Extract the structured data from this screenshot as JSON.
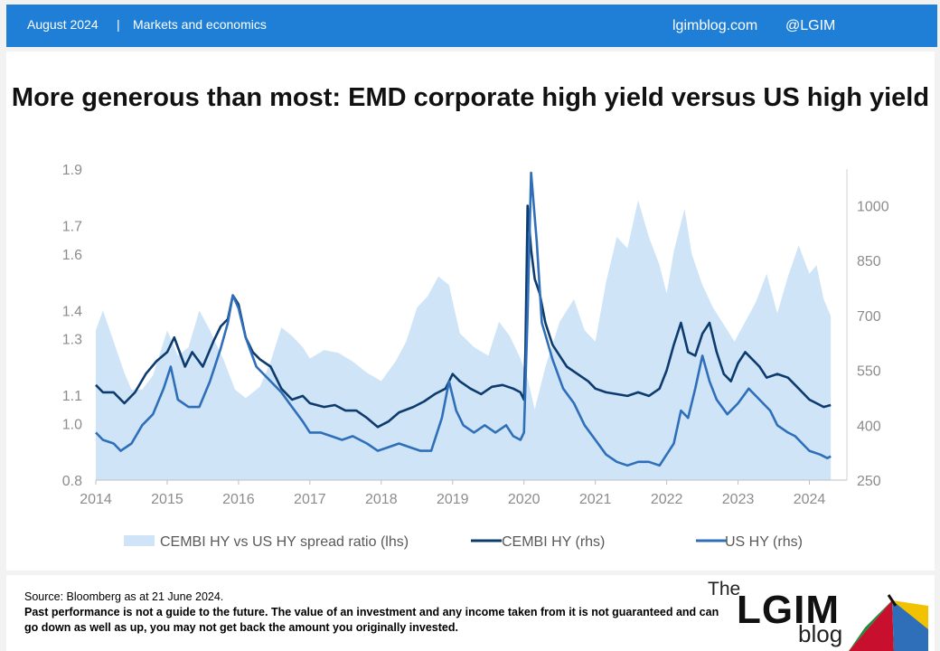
{
  "header": {
    "date": "August 2024",
    "separator": "|",
    "section": "Markets and economics",
    "site": "lgimblog.com",
    "handle": "@LGIM",
    "background": "#1f7fd6"
  },
  "chart_data": {
    "type": "line",
    "title": "More generous than most: EMD corporate high yield versus US high yield",
    "x_ticks": [
      "2014",
      "2015",
      "2016",
      "2017",
      "2018",
      "2019",
      "2020",
      "2021",
      "2022",
      "2023",
      "2024"
    ],
    "xlim": [
      2014.0,
      2024.5
    ],
    "left_axis": {
      "ticks": [
        "1.9",
        "1.7",
        "1.6",
        "1.4",
        "1.3",
        "1.1",
        "1.0",
        "0.8"
      ],
      "ylim": [
        0.8,
        1.9
      ]
    },
    "right_axis": {
      "ticks": [
        "1000",
        "850",
        "700",
        "550",
        "400",
        "250"
      ],
      "ylim": [
        250,
        1100
      ]
    },
    "legend_position": "bottom",
    "series": [
      {
        "name": "CEMBI HY vs US HY spread ratio (lhs)",
        "kind": "area",
        "axis": "left",
        "color": "#cfe5f7",
        "points": [
          [
            2014.0,
            1.33
          ],
          [
            2014.1,
            1.4
          ],
          [
            2014.25,
            1.29
          ],
          [
            2014.4,
            1.18
          ],
          [
            2014.5,
            1.12
          ],
          [
            2014.65,
            1.12
          ],
          [
            2014.8,
            1.17
          ],
          [
            2015.0,
            1.33
          ],
          [
            2015.15,
            1.24
          ],
          [
            2015.3,
            1.27
          ],
          [
            2015.45,
            1.4
          ],
          [
            2015.6,
            1.33
          ],
          [
            2015.8,
            1.22
          ],
          [
            2015.95,
            1.12
          ],
          [
            2016.1,
            1.09
          ],
          [
            2016.3,
            1.13
          ],
          [
            2016.45,
            1.22
          ],
          [
            2016.6,
            1.34
          ],
          [
            2016.75,
            1.31
          ],
          [
            2016.9,
            1.27
          ],
          [
            2017.0,
            1.23
          ],
          [
            2017.2,
            1.26
          ],
          [
            2017.4,
            1.25
          ],
          [
            2017.6,
            1.22
          ],
          [
            2017.8,
            1.18
          ],
          [
            2018.0,
            1.15
          ],
          [
            2018.2,
            1.22
          ],
          [
            2018.35,
            1.29
          ],
          [
            2018.5,
            1.41
          ],
          [
            2018.65,
            1.45
          ],
          [
            2018.8,
            1.52
          ],
          [
            2018.95,
            1.49
          ],
          [
            2019.1,
            1.32
          ],
          [
            2019.3,
            1.27
          ],
          [
            2019.5,
            1.24
          ],
          [
            2019.65,
            1.36
          ],
          [
            2019.8,
            1.31
          ],
          [
            2019.95,
            1.23
          ],
          [
            2020.05,
            1.16
          ],
          [
            2020.15,
            1.05
          ],
          [
            2020.3,
            1.2
          ],
          [
            2020.5,
            1.36
          ],
          [
            2020.7,
            1.44
          ],
          [
            2020.85,
            1.33
          ],
          [
            2021.0,
            1.29
          ],
          [
            2021.15,
            1.5
          ],
          [
            2021.3,
            1.66
          ],
          [
            2021.45,
            1.62
          ],
          [
            2021.6,
            1.79
          ],
          [
            2021.75,
            1.66
          ],
          [
            2021.9,
            1.56
          ],
          [
            2022.0,
            1.46
          ],
          [
            2022.1,
            1.61
          ],
          [
            2022.25,
            1.76
          ],
          [
            2022.35,
            1.6
          ],
          [
            2022.5,
            1.49
          ],
          [
            2022.65,
            1.41
          ],
          [
            2022.8,
            1.35
          ],
          [
            2022.95,
            1.29
          ],
          [
            2023.1,
            1.36
          ],
          [
            2023.25,
            1.43
          ],
          [
            2023.4,
            1.53
          ],
          [
            2023.55,
            1.39
          ],
          [
            2023.7,
            1.52
          ],
          [
            2023.85,
            1.63
          ],
          [
            2024.0,
            1.53
          ],
          [
            2024.1,
            1.56
          ],
          [
            2024.2,
            1.44
          ],
          [
            2024.3,
            1.38
          ]
        ]
      },
      {
        "name": "CEMBI HY (rhs)",
        "kind": "line",
        "axis": "right",
        "color": "#0d3b6e",
        "points": [
          [
            2014.0,
            510
          ],
          [
            2014.1,
            490
          ],
          [
            2014.25,
            490
          ],
          [
            2014.4,
            460
          ],
          [
            2014.55,
            490
          ],
          [
            2014.7,
            540
          ],
          [
            2014.85,
            575
          ],
          [
            2015.0,
            600
          ],
          [
            2015.1,
            640
          ],
          [
            2015.25,
            560
          ],
          [
            2015.35,
            600
          ],
          [
            2015.5,
            560
          ],
          [
            2015.65,
            630
          ],
          [
            2015.75,
            670
          ],
          [
            2015.85,
            690
          ],
          [
            2015.92,
            755
          ],
          [
            2016.0,
            730
          ],
          [
            2016.1,
            640
          ],
          [
            2016.2,
            600
          ],
          [
            2016.3,
            580
          ],
          [
            2016.45,
            560
          ],
          [
            2016.6,
            500
          ],
          [
            2016.75,
            470
          ],
          [
            2016.9,
            480
          ],
          [
            2017.0,
            460
          ],
          [
            2017.2,
            450
          ],
          [
            2017.35,
            455
          ],
          [
            2017.5,
            440
          ],
          [
            2017.65,
            440
          ],
          [
            2017.8,
            420
          ],
          [
            2017.95,
            395
          ],
          [
            2018.1,
            410
          ],
          [
            2018.25,
            435
          ],
          [
            2018.45,
            450
          ],
          [
            2018.6,
            465
          ],
          [
            2018.75,
            485
          ],
          [
            2018.9,
            500
          ],
          [
            2019.0,
            540
          ],
          [
            2019.1,
            520
          ],
          [
            2019.25,
            500
          ],
          [
            2019.4,
            485
          ],
          [
            2019.55,
            505
          ],
          [
            2019.7,
            510
          ],
          [
            2019.85,
            500
          ],
          [
            2019.95,
            490
          ],
          [
            2020.0,
            470
          ],
          [
            2020.02,
            600
          ],
          [
            2020.05,
            1000
          ],
          [
            2020.1,
            880
          ],
          [
            2020.15,
            800
          ],
          [
            2020.22,
            760
          ],
          [
            2020.3,
            680
          ],
          [
            2020.4,
            620
          ],
          [
            2020.5,
            590
          ],
          [
            2020.6,
            560
          ],
          [
            2020.75,
            540
          ],
          [
            2020.9,
            520
          ],
          [
            2021.0,
            500
          ],
          [
            2021.15,
            490
          ],
          [
            2021.3,
            485
          ],
          [
            2021.45,
            480
          ],
          [
            2021.6,
            490
          ],
          [
            2021.75,
            480
          ],
          [
            2021.9,
            500
          ],
          [
            2022.0,
            550
          ],
          [
            2022.1,
            620
          ],
          [
            2022.2,
            680
          ],
          [
            2022.3,
            600
          ],
          [
            2022.4,
            590
          ],
          [
            2022.5,
            650
          ],
          [
            2022.6,
            680
          ],
          [
            2022.7,
            600
          ],
          [
            2022.8,
            540
          ],
          [
            2022.9,
            520
          ],
          [
            2023.0,
            570
          ],
          [
            2023.1,
            600
          ],
          [
            2023.2,
            580
          ],
          [
            2023.3,
            560
          ],
          [
            2023.4,
            530
          ],
          [
            2023.55,
            540
          ],
          [
            2023.7,
            530
          ],
          [
            2023.85,
            500
          ],
          [
            2024.0,
            470
          ],
          [
            2024.1,
            460
          ],
          [
            2024.2,
            450
          ],
          [
            2024.3,
            455
          ]
        ]
      },
      {
        "name": "US HY (rhs)",
        "kind": "line",
        "axis": "right",
        "color": "#2f6fba",
        "points": [
          [
            2014.0,
            380
          ],
          [
            2014.1,
            360
          ],
          [
            2014.25,
            350
          ],
          [
            2014.35,
            330
          ],
          [
            2014.5,
            350
          ],
          [
            2014.65,
            400
          ],
          [
            2014.8,
            430
          ],
          [
            2014.95,
            500
          ],
          [
            2015.05,
            560
          ],
          [
            2015.15,
            470
          ],
          [
            2015.3,
            450
          ],
          [
            2015.45,
            450
          ],
          [
            2015.6,
            520
          ],
          [
            2015.75,
            610
          ],
          [
            2015.85,
            680
          ],
          [
            2015.92,
            755
          ],
          [
            2016.0,
            720
          ],
          [
            2016.1,
            640
          ],
          [
            2016.25,
            560
          ],
          [
            2016.45,
            520
          ],
          [
            2016.6,
            490
          ],
          [
            2016.75,
            450
          ],
          [
            2016.9,
            410
          ],
          [
            2017.0,
            380
          ],
          [
            2017.15,
            380
          ],
          [
            2017.3,
            370
          ],
          [
            2017.45,
            360
          ],
          [
            2017.6,
            370
          ],
          [
            2017.8,
            350
          ],
          [
            2017.95,
            330
          ],
          [
            2018.1,
            340
          ],
          [
            2018.25,
            350
          ],
          [
            2018.4,
            340
          ],
          [
            2018.55,
            330
          ],
          [
            2018.7,
            330
          ],
          [
            2018.85,
            420
          ],
          [
            2018.95,
            520
          ],
          [
            2019.05,
            440
          ],
          [
            2019.15,
            400
          ],
          [
            2019.3,
            380
          ],
          [
            2019.45,
            400
          ],
          [
            2019.6,
            380
          ],
          [
            2019.75,
            400
          ],
          [
            2019.85,
            370
          ],
          [
            2019.95,
            360
          ],
          [
            2020.0,
            380
          ],
          [
            2020.05,
            700
          ],
          [
            2020.1,
            1090
          ],
          [
            2020.18,
            900
          ],
          [
            2020.25,
            680
          ],
          [
            2020.4,
            580
          ],
          [
            2020.55,
            500
          ],
          [
            2020.7,
            460
          ],
          [
            2020.85,
            400
          ],
          [
            2021.0,
            360
          ],
          [
            2021.15,
            320
          ],
          [
            2021.3,
            300
          ],
          [
            2021.45,
            290
          ],
          [
            2021.6,
            300
          ],
          [
            2021.75,
            300
          ],
          [
            2021.9,
            290
          ],
          [
            2022.0,
            320
          ],
          [
            2022.1,
            350
          ],
          [
            2022.2,
            440
          ],
          [
            2022.3,
            420
          ],
          [
            2022.4,
            500
          ],
          [
            2022.5,
            590
          ],
          [
            2022.6,
            520
          ],
          [
            2022.7,
            470
          ],
          [
            2022.85,
            430
          ],
          [
            2023.0,
            460
          ],
          [
            2023.15,
            500
          ],
          [
            2023.25,
            480
          ],
          [
            2023.35,
            460
          ],
          [
            2023.45,
            440
          ],
          [
            2023.55,
            400
          ],
          [
            2023.7,
            380
          ],
          [
            2023.8,
            370
          ],
          [
            2023.9,
            350
          ],
          [
            2024.0,
            330
          ],
          [
            2024.15,
            320
          ],
          [
            2024.25,
            310
          ],
          [
            2024.3,
            315
          ]
        ]
      }
    ]
  },
  "footer": {
    "source": "Source: Bloomberg as at 21 June 2024.",
    "disclaimer": "Past performance is not a guide to the future. The value of an investment and any income taken from it is not guaranteed and can go down as well as up, you may  not get back the amount you originally invested."
  },
  "logo": {
    "the": "The",
    "word": "LGIM",
    "blog": "blog"
  }
}
